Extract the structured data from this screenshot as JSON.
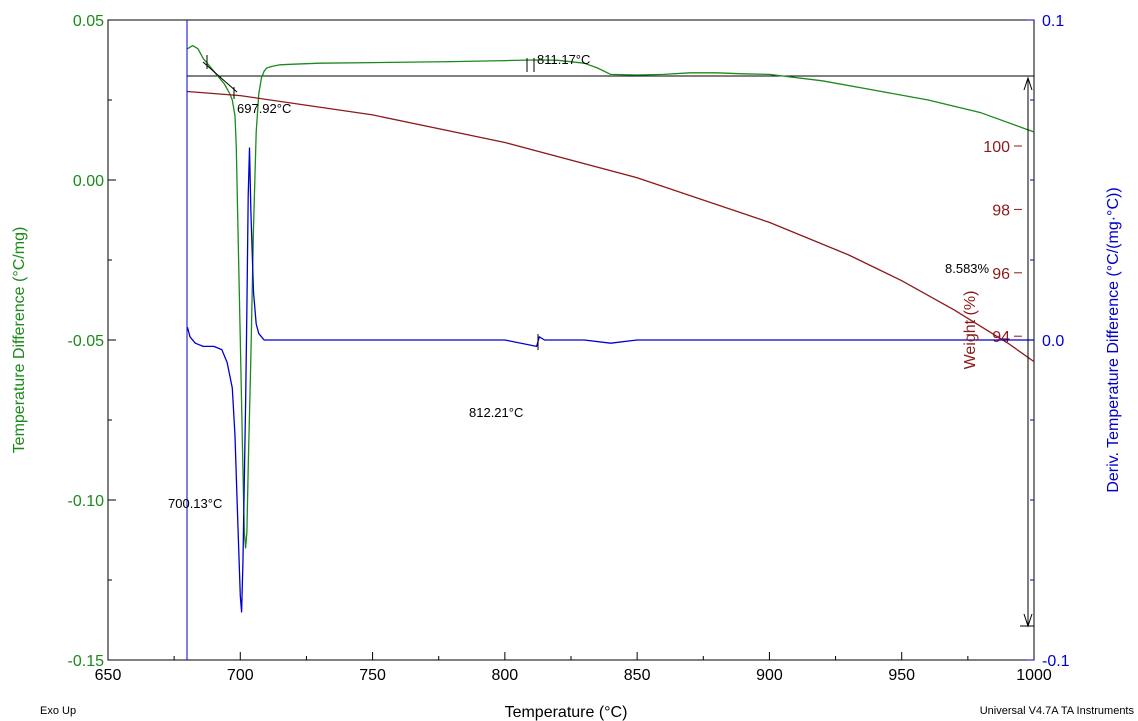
{
  "chart_data": {
    "type": "line",
    "xlabel": "Temperature (°C)",
    "xlim": [
      650,
      1000
    ],
    "x_ticks": [
      "650",
      "700",
      "750",
      "800",
      "850",
      "900",
      "950",
      "1000"
    ],
    "axes": {
      "left": {
        "label": "Temperature Difference (°C/mg)",
        "range": [
          -0.15,
          0.05
        ],
        "ticks": [
          "0.05",
          "0.00",
          "-0.05",
          "-0.10",
          "-0.15"
        ],
        "color": "#1a8a1a"
      },
      "right_weight": {
        "label": "Weight (%)",
        "ticks": [
          "100",
          "98",
          "96",
          "94"
        ],
        "color": "#8b1a1a"
      },
      "right_deriv": {
        "label": "Deriv. Temperature Difference (°C/(mg·°C))",
        "range": [
          -0.1,
          0.1
        ],
        "ticks": [
          "0.1",
          "0.0",
          "-0.1"
        ],
        "color": "#0000cc"
      }
    },
    "series": [
      {
        "color": "#1a8a1a",
        "axis": "left",
        "x": [
          680,
          682,
          684,
          686,
          688,
          690,
          692,
          694,
          696,
          697,
          698,
          698.5,
          699,
          700,
          701,
          701.5,
          702,
          702.5,
          703,
          704,
          705,
          706,
          707,
          708,
          709,
          710,
          712,
          715,
          720,
          730,
          750,
          780,
          800,
          810,
          815,
          820,
          830,
          835,
          840,
          850,
          860,
          870,
          880,
          890,
          900,
          920,
          940,
          960,
          980,
          1000
        ],
        "y": [
          0.041,
          0.042,
          0.041,
          0.038,
          0.036,
          0.034,
          0.032,
          0.03,
          0.027,
          0.025,
          0.02,
          0.01,
          -0.01,
          -0.05,
          -0.09,
          -0.11,
          -0.115,
          -0.11,
          -0.09,
          -0.055,
          -0.015,
          0.015,
          0.027,
          0.032,
          0.034,
          0.035,
          0.0355,
          0.036,
          0.0362,
          0.0365,
          0.0367,
          0.037,
          0.0373,
          0.0375,
          0.0375,
          0.0374,
          0.0365,
          0.035,
          0.033,
          0.0328,
          0.033,
          0.0335,
          0.0335,
          0.0332,
          0.033,
          0.031,
          0.028,
          0.025,
          0.021,
          0.015
        ]
      },
      {
        "color": "#8b1a1a",
        "axis": "right_weight",
        "x": [
          680,
          700,
          750,
          800,
          850,
          900,
          930,
          950,
          970,
          990,
          1000
        ],
        "y": [
          101.72,
          101.59,
          100.98,
          100.11,
          99.0,
          97.59,
          96.56,
          95.75,
          94.82,
          93.79,
          93.2
        ]
      },
      {
        "color": "#0000cc",
        "axis": "right_deriv",
        "x": [
          680,
          681,
          683,
          686,
          690,
          693,
          695,
          697,
          698,
          699,
          700,
          700.5,
          701,
          702,
          702.5,
          703,
          703.5,
          704,
          705,
          706,
          707,
          708,
          709,
          710,
          712,
          720,
          800,
          812,
          813,
          815,
          830,
          840,
          850,
          880,
          900,
          950,
          1000
        ],
        "y": [
          0.004,
          0.001,
          -0.001,
          -0.002,
          -0.002,
          -0.003,
          -0.007,
          -0.015,
          -0.03,
          -0.055,
          -0.08,
          -0.085,
          -0.07,
          -0.02,
          0.01,
          0.045,
          0.06,
          0.04,
          0.015,
          0.005,
          0.002,
          0.001,
          0.0,
          0.0,
          0.0,
          0.0,
          0.0,
          -0.002,
          0.001,
          0.0,
          0.0,
          -0.001,
          0.0,
          0.0,
          0.0,
          0.0,
          0.0
        ]
      }
    ],
    "annotations": [
      "697.92°C",
      "811.17°C",
      "812.21°C",
      "700.13°C",
      "8.583%"
    ],
    "footer_left": "Exo Up",
    "footer_right": "Universal V4.7A TA Instruments"
  }
}
